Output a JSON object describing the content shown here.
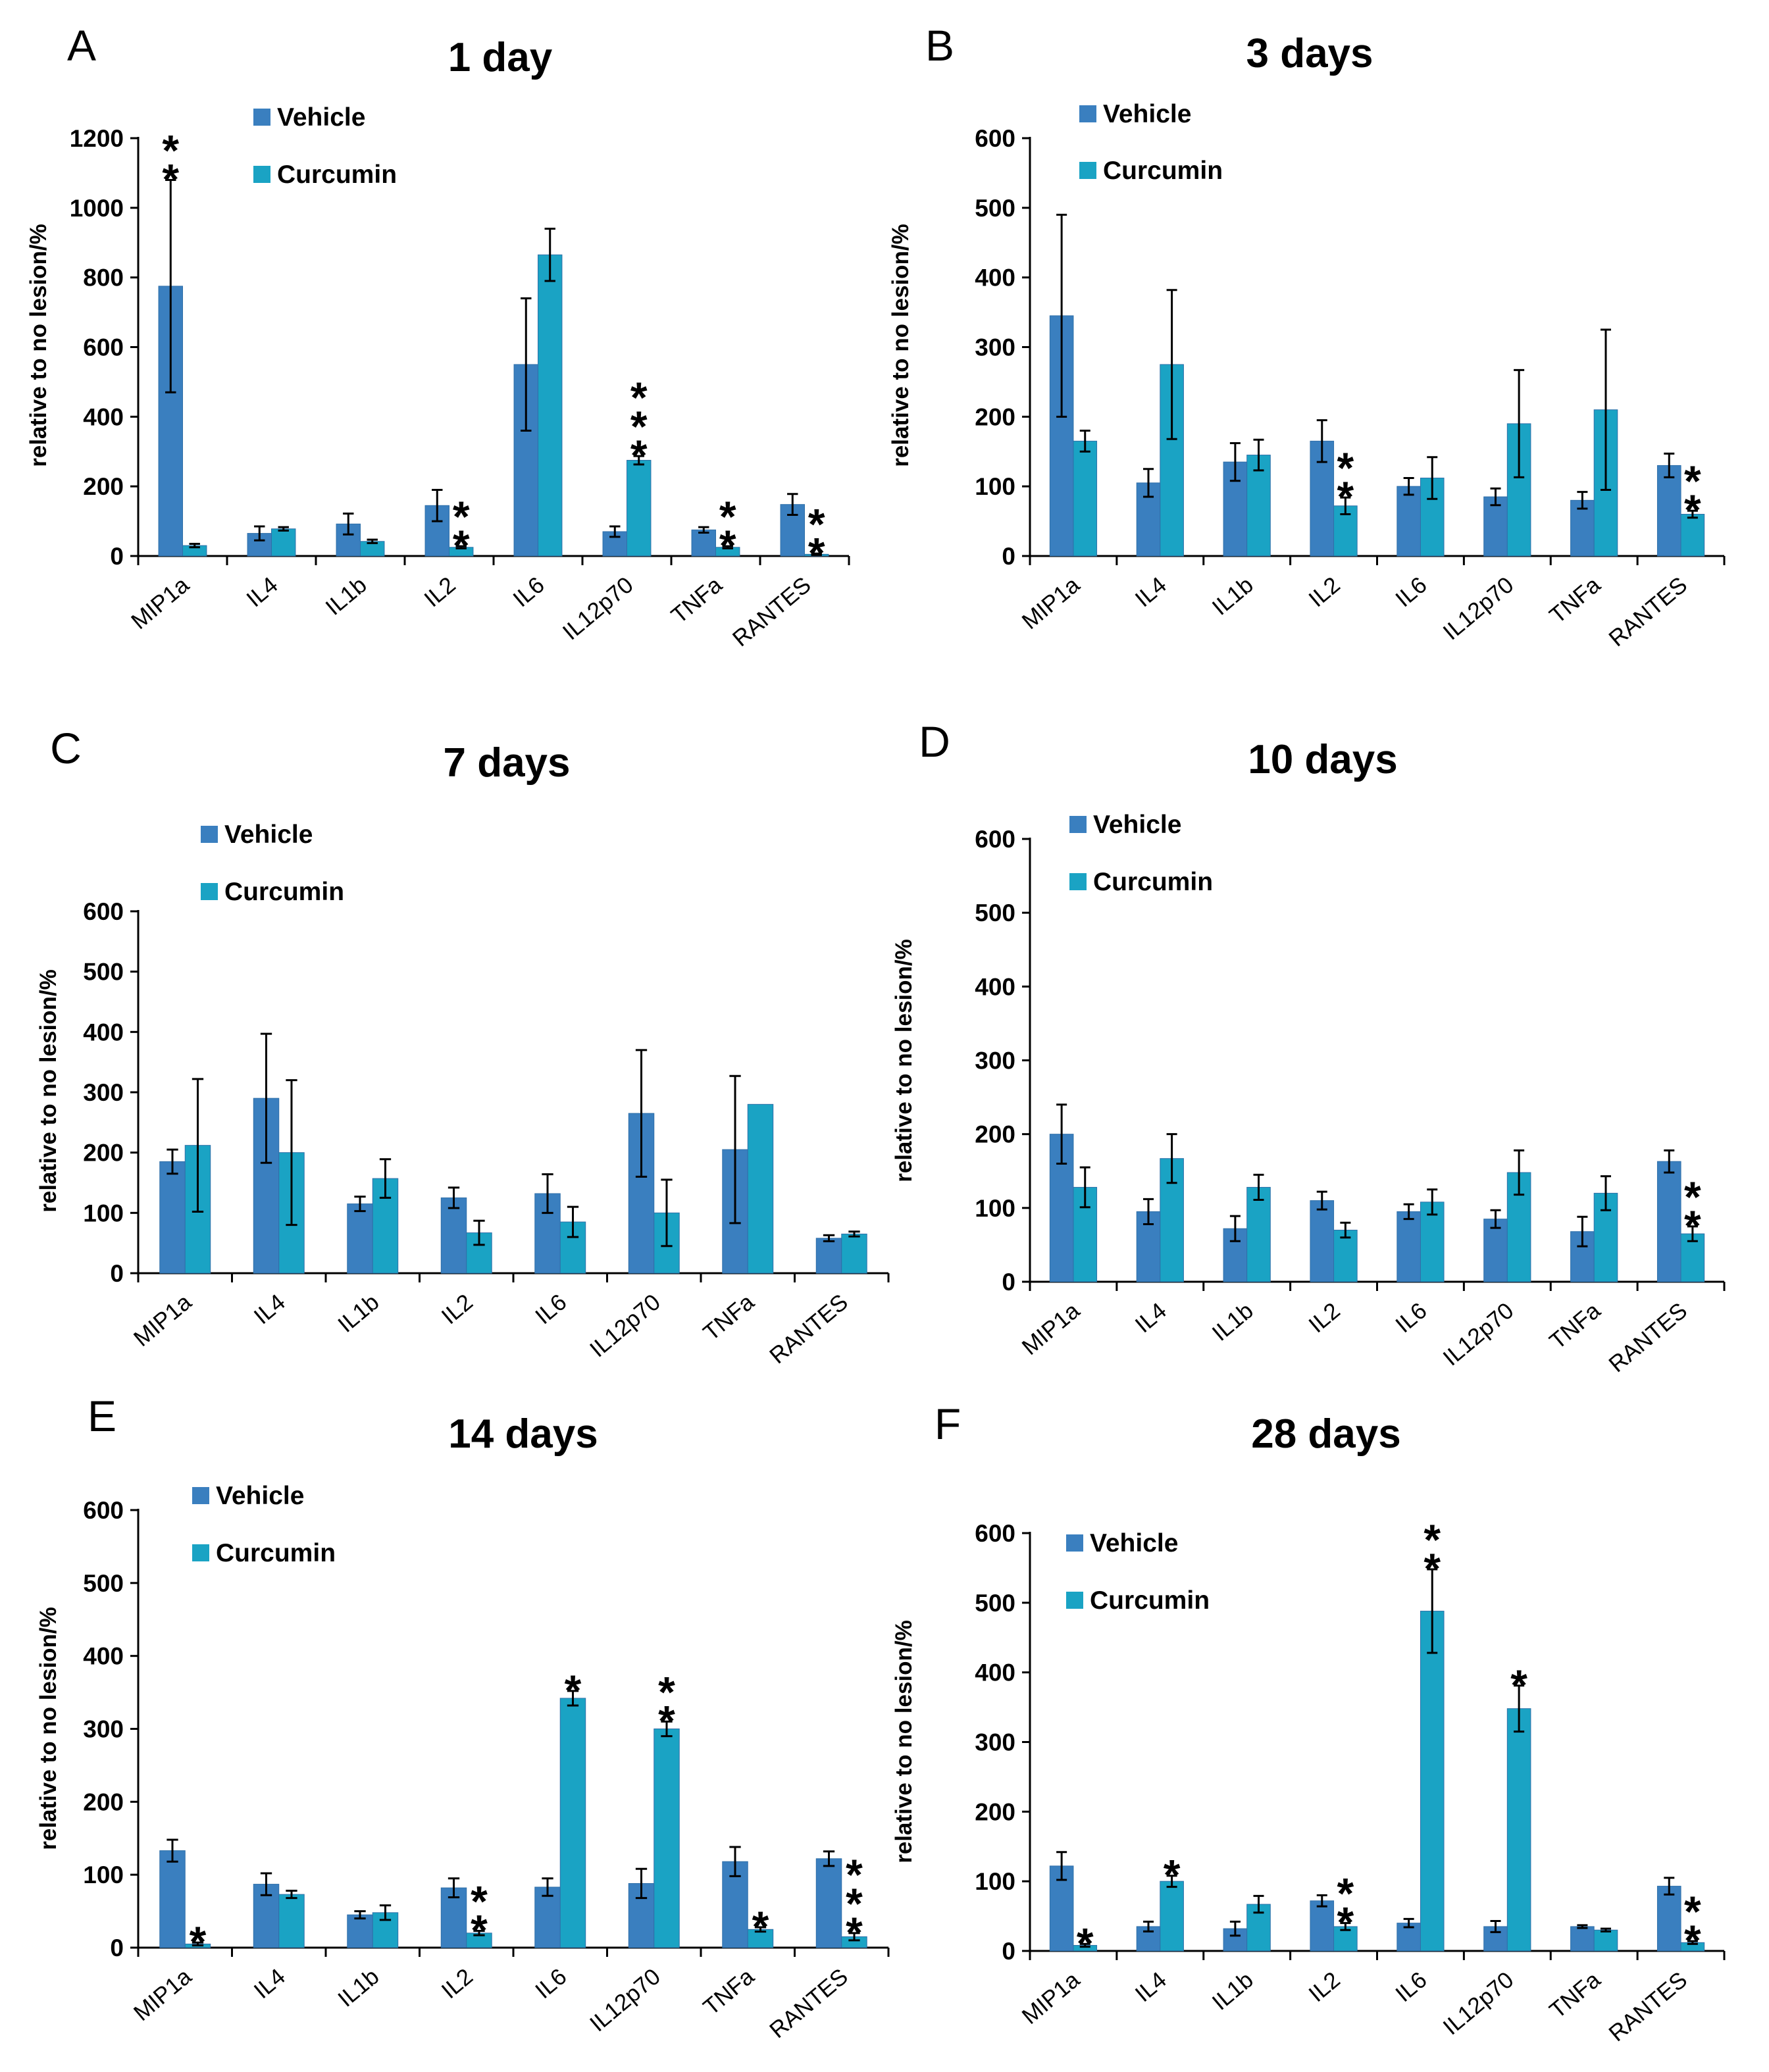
{
  "colors": {
    "vehicle": "#3a7fbf",
    "curcumin": "#1aa3c4",
    "axis": "#000000",
    "error_bar": "#000000"
  },
  "legend": {
    "vehicle": "Vehicle",
    "curcumin": "Curcumin"
  },
  "chart_data": [
    {
      "type": "bar",
      "panel": "A",
      "title": "1 day",
      "xlabel": "",
      "ylabel": "relative to no lesion/%",
      "ylim": [
        0,
        1200
      ],
      "yticks": [
        0,
        200,
        400,
        600,
        800,
        1000,
        1200
      ],
      "categories": [
        "MIP1a",
        "IL4",
        "IL1b",
        "IL2",
        "IL6",
        "IL12p70",
        "TNFa",
        "RANTES"
      ],
      "series": [
        {
          "name": "Vehicle",
          "values": [
            775,
            65,
            92,
            145,
            550,
            70,
            75,
            148
          ],
          "errors": [
            305,
            20,
            30,
            45,
            190,
            15,
            8,
            30
          ]
        },
        {
          "name": "Curcumin",
          "values": [
            30,
            78,
            42,
            25,
            865,
            275,
            25,
            5
          ],
          "errors": [
            5,
            5,
            5,
            3,
            75,
            12,
            3,
            2
          ]
        }
      ],
      "significance": [
        {
          "category": "MIP1a",
          "series": "Vehicle",
          "stars": "**"
        },
        {
          "category": "IL2",
          "series": "Curcumin",
          "stars": "**"
        },
        {
          "category": "IL12p70",
          "series": "Curcumin",
          "stars": "***"
        },
        {
          "category": "TNFa",
          "series": "Curcumin",
          "stars": "**"
        },
        {
          "category": "RANTES",
          "series": "Curcumin",
          "stars": "**"
        }
      ],
      "grid": false,
      "legend_position": "top-left"
    },
    {
      "type": "bar",
      "panel": "B",
      "title": "3 days",
      "xlabel": "",
      "ylabel": "relative to no lesion/%",
      "ylim": [
        0,
        600
      ],
      "yticks": [
        0,
        100,
        200,
        300,
        400,
        500,
        600
      ],
      "categories": [
        "MIP1a",
        "IL4",
        "IL1b",
        "IL2",
        "IL6",
        "IL12p70",
        "TNFa",
        "RANTES"
      ],
      "series": [
        {
          "name": "Vehicle",
          "values": [
            345,
            105,
            135,
            165,
            100,
            85,
            80,
            130
          ],
          "errors": [
            145,
            20,
            27,
            30,
            12,
            12,
            12,
            17
          ]
        },
        {
          "name": "Curcumin",
          "values": [
            165,
            275,
            145,
            72,
            112,
            190,
            210,
            60
          ],
          "errors": [
            15,
            107,
            22,
            12,
            30,
            77,
            115,
            5
          ]
        }
      ],
      "significance": [
        {
          "category": "IL2",
          "series": "Curcumin",
          "stars": "**"
        },
        {
          "category": "RANTES",
          "series": "Curcumin",
          "stars": "**"
        }
      ],
      "grid": false,
      "legend_position": "top-left"
    },
    {
      "type": "bar",
      "panel": "C",
      "title": "7 days",
      "xlabel": "",
      "ylabel": "relative to no lesion/%",
      "ylim": [
        0,
        600
      ],
      "yticks": [
        0,
        100,
        200,
        300,
        400,
        500,
        600
      ],
      "categories": [
        "MIP1a",
        "IL4",
        "IL1b",
        "IL2",
        "IL6",
        "IL12p70",
        "TNFa",
        "RANTES"
      ],
      "series": [
        {
          "name": "Vehicle",
          "values": [
            185,
            290,
            115,
            125,
            132,
            265,
            205,
            58
          ],
          "errors": [
            20,
            107,
            12,
            17,
            32,
            105,
            122,
            5
          ]
        },
        {
          "name": "Curcumin",
          "values": [
            212,
            200,
            157,
            67,
            85,
            100,
            280,
            65
          ],
          "errors": [
            110,
            120,
            32,
            20,
            25,
            55,
            0,
            4
          ]
        }
      ],
      "significance": [],
      "grid": false,
      "legend_position": "top-left"
    },
    {
      "type": "bar",
      "panel": "D",
      "title": "10 days",
      "xlabel": "",
      "ylabel": "relative to no lesion/%",
      "ylim": [
        0,
        600
      ],
      "yticks": [
        0,
        100,
        200,
        300,
        400,
        500,
        600
      ],
      "categories": [
        "MIP1a",
        "IL4",
        "IL1b",
        "IL2",
        "IL6",
        "IL12p70",
        "TNFa",
        "RANTES"
      ],
      "series": [
        {
          "name": "Vehicle",
          "values": [
            200,
            95,
            72,
            110,
            95,
            85,
            68,
            163
          ],
          "errors": [
            40,
            17,
            17,
            12,
            10,
            12,
            20,
            15
          ]
        },
        {
          "name": "Curcumin",
          "values": [
            128,
            167,
            128,
            70,
            108,
            148,
            120,
            65
          ],
          "errors": [
            27,
            33,
            17,
            10,
            17,
            30,
            23,
            10
          ]
        }
      ],
      "significance": [
        {
          "category": "RANTES",
          "series": "Curcumin",
          "stars": "**"
        }
      ],
      "grid": false,
      "legend_position": "top-left"
    },
    {
      "type": "bar",
      "panel": "E",
      "title": "14 days",
      "xlabel": "",
      "ylabel": "relative to no lesion/%",
      "ylim": [
        0,
        600
      ],
      "yticks": [
        0,
        100,
        200,
        300,
        400,
        500,
        600
      ],
      "categories": [
        "MIP1a",
        "IL4",
        "IL1b",
        "IL2",
        "IL6",
        "IL12p70",
        "TNFa",
        "RANTES"
      ],
      "series": [
        {
          "name": "Vehicle",
          "values": [
            133,
            87,
            45,
            82,
            83,
            88,
            118,
            122
          ],
          "errors": [
            15,
            15,
            5,
            13,
            12,
            20,
            20,
            10
          ]
        },
        {
          "name": "Curcumin",
          "values": [
            5,
            73,
            48,
            20,
            342,
            300,
            25,
            15
          ],
          "errors": [
            2,
            5,
            10,
            3,
            10,
            10,
            3,
            5
          ]
        }
      ],
      "significance": [
        {
          "category": "MIP1a",
          "series": "Curcumin",
          "stars": "*"
        },
        {
          "category": "IL2",
          "series": "Curcumin",
          "stars": "**"
        },
        {
          "category": "IL6",
          "series": "Curcumin",
          "stars": "*"
        },
        {
          "category": "IL12p70",
          "series": "Curcumin",
          "stars": "**"
        },
        {
          "category": "TNFa",
          "series": "Curcumin",
          "stars": "*"
        },
        {
          "category": "RANTES",
          "series": "Curcumin",
          "stars": "***"
        }
      ],
      "grid": false,
      "legend_position": "top-left"
    },
    {
      "type": "bar",
      "panel": "F",
      "title": "28 days",
      "xlabel": "",
      "ylabel": "relative to no lesion/%",
      "ylim": [
        0,
        600
      ],
      "yticks": [
        0,
        100,
        200,
        300,
        400,
        500,
        600
      ],
      "categories": [
        "MIP1a",
        "IL4",
        "IL1b",
        "IL2",
        "IL6",
        "IL12p70",
        "TNFa",
        "RANTES"
      ],
      "series": [
        {
          "name": "Vehicle",
          "values": [
            122,
            35,
            32,
            72,
            40,
            35,
            35,
            93
          ],
          "errors": [
            20,
            7,
            10,
            8,
            6,
            8,
            2,
            12
          ]
        },
        {
          "name": "Curcumin",
          "values": [
            8,
            100,
            67,
            35,
            488,
            348,
            30,
            12
          ],
          "errors": [
            2,
            8,
            12,
            5,
            60,
            33,
            2,
            2
          ]
        }
      ],
      "significance": [
        {
          "category": "MIP1a",
          "series": "Curcumin",
          "stars": "*"
        },
        {
          "category": "IL4",
          "series": "Curcumin",
          "stars": "*"
        },
        {
          "category": "IL2",
          "series": "Curcumin",
          "stars": "**"
        },
        {
          "category": "IL6",
          "series": "Curcumin",
          "stars": "**"
        },
        {
          "category": "IL12p70",
          "series": "Curcumin",
          "stars": "*"
        },
        {
          "category": "RANTES",
          "series": "Curcumin",
          "stars": "**"
        }
      ],
      "grid": false,
      "legend_position": "top-left"
    }
  ]
}
